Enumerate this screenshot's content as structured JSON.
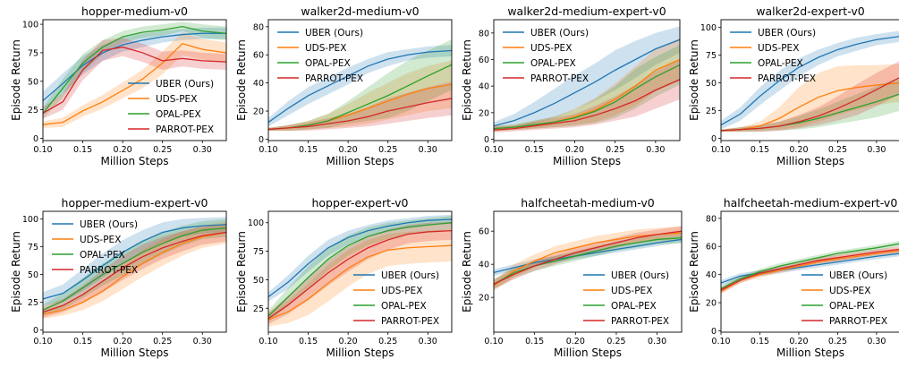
{
  "colors": {
    "UBER (Ours)": "#1f77b4",
    "UDS-PEX": "#ff7f0e",
    "OPAL-PEX": "#2ca02c",
    "PARROT-PEX": "#d62728"
  },
  "chart_data": [
    {
      "type": "line",
      "title": "hopper-medium-v0",
      "xlabel": "Million Steps",
      "ylabel": "Episode Return",
      "xlim": [
        0.1,
        0.33
      ],
      "ylim": [
        -2,
        104
      ],
      "xticks": [
        0.1,
        0.15,
        0.2,
        0.25,
        0.3
      ],
      "yticks": [
        0,
        25,
        50,
        75,
        100
      ],
      "legend": "bottom-right",
      "x": [
        0.1,
        0.125,
        0.15,
        0.175,
        0.2,
        0.225,
        0.25,
        0.275,
        0.3,
        0.33
      ],
      "series": [
        {
          "name": "UBER (Ours)",
          "values": [
            33,
            48,
            64,
            75,
            82,
            86,
            89,
            91,
            92,
            92
          ],
          "band": [
            8,
            9,
            8,
            7,
            6,
            6,
            5,
            5,
            5,
            5
          ]
        },
        {
          "name": "UDS-PEX",
          "values": [
            12,
            14,
            24,
            32,
            42,
            52,
            66,
            83,
            78,
            75
          ],
          "band": [
            3,
            4,
            5,
            6,
            7,
            8,
            10,
            10,
            9,
            9
          ]
        },
        {
          "name": "OPAL-PEX",
          "values": [
            22,
            44,
            66,
            80,
            89,
            93,
            95,
            98,
            94,
            92
          ],
          "band": [
            5,
            8,
            8,
            6,
            5,
            5,
            5,
            4,
            6,
            6
          ]
        },
        {
          "name": "PARROT-PEX",
          "values": [
            22,
            32,
            60,
            77,
            80,
            75,
            68,
            70,
            68,
            67
          ],
          "band": [
            5,
            7,
            9,
            9,
            8,
            8,
            8,
            7,
            7,
            7
          ]
        }
      ]
    },
    {
      "type": "line",
      "title": "walker2d-medium-v0",
      "xlabel": "Million Steps",
      "ylabel": "Episode Return",
      "xlim": [
        0.1,
        0.33
      ],
      "ylim": [
        -1,
        85
      ],
      "xticks": [
        0.1,
        0.15,
        0.2,
        0.25,
        0.3
      ],
      "yticks": [
        0,
        20,
        40,
        60,
        80
      ],
      "legend": "top-left",
      "x": [
        0.1,
        0.125,
        0.15,
        0.175,
        0.2,
        0.225,
        0.25,
        0.275,
        0.3,
        0.33
      ],
      "series": [
        {
          "name": "UBER (Ours)",
          "values": [
            12,
            22,
            31,
            38,
            45,
            52,
            57,
            60,
            62,
            63
          ],
          "band": [
            3,
            5,
            6,
            6,
            6,
            5,
            5,
            4,
            4,
            4
          ]
        },
        {
          "name": "UDS-PEX",
          "values": [
            7,
            8,
            10,
            13,
            17,
            22,
            27,
            32,
            36,
            39
          ],
          "band": [
            1,
            2,
            3,
            5,
            8,
            11,
            13,
            15,
            16,
            17
          ]
        },
        {
          "name": "OPAL-PEX",
          "values": [
            7,
            8,
            10,
            13,
            19,
            25,
            31,
            38,
            45,
            53
          ],
          "band": [
            1,
            2,
            3,
            5,
            8,
            12,
            16,
            18,
            18,
            18
          ]
        },
        {
          "name": "PARROT-PEX",
          "values": [
            7,
            8,
            9,
            11,
            13,
            16,
            20,
            23,
            26,
            29
          ],
          "band": [
            1,
            2,
            3,
            4,
            5,
            7,
            9,
            10,
            11,
            12
          ]
        }
      ]
    },
    {
      "type": "line",
      "title": "walker2d-medium-expert-v0",
      "xlabel": "Million Steps",
      "ylabel": "Episode Return",
      "xlim": [
        0.1,
        0.33
      ],
      "ylim": [
        -1,
        90
      ],
      "xticks": [
        0.1,
        0.15,
        0.2,
        0.25,
        0.3
      ],
      "yticks": [
        0,
        20,
        40,
        60,
        80
      ],
      "legend": "top-left",
      "x": [
        0.1,
        0.125,
        0.15,
        0.175,
        0.2,
        0.225,
        0.25,
        0.275,
        0.3,
        0.33
      ],
      "series": [
        {
          "name": "UBER (Ours)",
          "values": [
            10,
            14,
            20,
            27,
            35,
            43,
            52,
            60,
            68,
            75
          ],
          "band": [
            3,
            5,
            8,
            11,
            13,
            14,
            15,
            14,
            12,
            10
          ]
        },
        {
          "name": "UDS-PEX",
          "values": [
            8,
            9,
            11,
            13,
            17,
            22,
            30,
            40,
            52,
            60
          ],
          "band": [
            2,
            2,
            3,
            4,
            6,
            9,
            12,
            15,
            16,
            16
          ]
        },
        {
          "name": "OPAL-PEX",
          "values": [
            8,
            9,
            11,
            13,
            16,
            21,
            28,
            38,
            47,
            56
          ],
          "band": [
            2,
            2,
            3,
            4,
            6,
            9,
            12,
            15,
            15,
            15
          ]
        },
        {
          "name": "PARROT-PEX",
          "values": [
            7,
            8,
            10,
            12,
            14,
            18,
            23,
            29,
            37,
            45
          ],
          "band": [
            2,
            2,
            3,
            4,
            5,
            7,
            9,
            12,
            14,
            15
          ]
        }
      ]
    },
    {
      "type": "line",
      "title": "walker2d-expert-v0",
      "xlabel": "Million Steps",
      "ylabel": "Episode Return",
      "xlim": [
        0.1,
        0.33
      ],
      "ylim": [
        -2,
        107
      ],
      "xticks": [
        0.1,
        0.15,
        0.2,
        0.25,
        0.3
      ],
      "yticks": [
        0,
        25,
        50,
        75,
        100
      ],
      "legend": "top-left",
      "x": [
        0.1,
        0.125,
        0.15,
        0.175,
        0.2,
        0.225,
        0.25,
        0.275,
        0.3,
        0.33
      ],
      "series": [
        {
          "name": "UBER (Ours)",
          "values": [
            12,
            22,
            38,
            52,
            64,
            73,
            80,
            85,
            89,
            92
          ],
          "band": [
            4,
            6,
            8,
            9,
            8,
            7,
            6,
            6,
            5,
            5
          ]
        },
        {
          "name": "UDS-PEX",
          "values": [
            7,
            8,
            11,
            18,
            28,
            37,
            43,
            46,
            48,
            50
          ],
          "band": [
            1,
            2,
            4,
            10,
            18,
            22,
            22,
            20,
            18,
            17
          ]
        },
        {
          "name": "OPAL-PEX",
          "values": [
            7,
            8,
            9,
            11,
            14,
            18,
            23,
            28,
            33,
            40
          ],
          "band": [
            1,
            2,
            3,
            4,
            6,
            8,
            10,
            12,
            14,
            15
          ]
        },
        {
          "name": "PARROT-PEX",
          "values": [
            7,
            8,
            9,
            11,
            15,
            20,
            27,
            35,
            44,
            55
          ],
          "band": [
            1,
            2,
            3,
            4,
            6,
            8,
            11,
            14,
            15,
            15
          ]
        }
      ]
    },
    {
      "type": "line",
      "title": "hopper-medium-expert-v0",
      "xlabel": "Million Steps",
      "ylabel": "Episode Return",
      "xlim": [
        0.1,
        0.33
      ],
      "ylim": [
        -2,
        107
      ],
      "xticks": [
        0.1,
        0.15,
        0.2,
        0.25,
        0.3
      ],
      "yticks": [
        0,
        25,
        50,
        75,
        100
      ],
      "legend": "top-left",
      "x": [
        0.1,
        0.125,
        0.15,
        0.175,
        0.2,
        0.225,
        0.25,
        0.275,
        0.3,
        0.33
      ],
      "series": [
        {
          "name": "UBER (Ours)",
          "values": [
            28,
            33,
            45,
            58,
            70,
            80,
            88,
            92,
            94,
            95
          ],
          "band": [
            6,
            8,
            10,
            11,
            11,
            10,
            9,
            8,
            7,
            7
          ]
        },
        {
          "name": "UDS-PEX",
          "values": [
            14,
            18,
            25,
            35,
            48,
            60,
            70,
            78,
            84,
            88
          ],
          "band": [
            4,
            5,
            7,
            9,
            11,
            12,
            12,
            11,
            10,
            10
          ]
        },
        {
          "name": "OPAL-PEX",
          "values": [
            18,
            26,
            38,
            50,
            60,
            70,
            78,
            85,
            90,
            92
          ],
          "band": [
            5,
            7,
            9,
            10,
            11,
            11,
            10,
            9,
            8,
            8
          ]
        },
        {
          "name": "PARROT-PEX",
          "values": [
            16,
            22,
            32,
            44,
            56,
            66,
            74,
            80,
            85,
            88
          ],
          "band": [
            5,
            6,
            8,
            10,
            11,
            11,
            10,
            9,
            8,
            8
          ]
        }
      ]
    },
    {
      "type": "line",
      "title": "hopper-expert-v0",
      "xlabel": "Million Steps",
      "ylabel": "Episode Return",
      "xlim": [
        0.1,
        0.33
      ],
      "ylim": [
        4,
        110
      ],
      "xticks": [
        0.1,
        0.15,
        0.2,
        0.25,
        0.3
      ],
      "yticks": [
        25,
        50,
        75,
        100
      ],
      "legend": "bottom-right",
      "x": [
        0.1,
        0.125,
        0.15,
        0.175,
        0.2,
        0.225,
        0.25,
        0.275,
        0.3,
        0.33
      ],
      "series": [
        {
          "name": "UBER (Ours)",
          "values": [
            35,
            48,
            64,
            78,
            87,
            93,
            97,
            100,
            102,
            103
          ],
          "band": [
            4,
            6,
            7,
            7,
            6,
            5,
            5,
            4,
            4,
            4
          ]
        },
        {
          "name": "UDS-PEX",
          "values": [
            15,
            22,
            33,
            47,
            60,
            70,
            76,
            78,
            79,
            80
          ],
          "band": [
            6,
            10,
            14,
            16,
            16,
            15,
            14,
            14,
            14,
            14
          ]
        },
        {
          "name": "OPAL-PEX",
          "values": [
            18,
            35,
            52,
            68,
            80,
            88,
            93,
            96,
            98,
            100
          ],
          "band": [
            5,
            8,
            10,
            10,
            9,
            8,
            7,
            6,
            6,
            6
          ]
        },
        {
          "name": "PARROT-PEX",
          "values": [
            16,
            28,
            42,
            56,
            68,
            78,
            85,
            90,
            92,
            93
          ],
          "band": [
            5,
            8,
            10,
            11,
            11,
            10,
            9,
            8,
            8,
            8
          ]
        }
      ]
    },
    {
      "type": "line",
      "title": "halfcheetah-medium-v0",
      "xlabel": "Million Steps",
      "ylabel": "Episode Return",
      "xlim": [
        0.1,
        0.33
      ],
      "ylim": [
        -1,
        72
      ],
      "xticks": [
        0.1,
        0.15,
        0.2,
        0.25,
        0.3
      ],
      "yticks": [
        20,
        40,
        60
      ],
      "legend": "bottom-right",
      "x": [
        0.1,
        0.125,
        0.15,
        0.175,
        0.2,
        0.225,
        0.25,
        0.275,
        0.3,
        0.33
      ],
      "series": [
        {
          "name": "UBER (Ours)",
          "values": [
            35,
            38,
            41,
            43,
            45,
            47,
            49,
            51,
            53,
            55
          ],
          "band": [
            2,
            2,
            2,
            2,
            2,
            2,
            2,
            2,
            2,
            2
          ]
        },
        {
          "name": "UDS-PEX",
          "values": [
            27,
            36,
            42,
            47,
            50,
            53,
            55,
            57,
            58,
            59
          ],
          "band": [
            3,
            4,
            4,
            4,
            4,
            4,
            4,
            4,
            4,
            4
          ]
        },
        {
          "name": "OPAL-PEX",
          "values": [
            28,
            35,
            39,
            42,
            45,
            48,
            51,
            53,
            55,
            56
          ],
          "band": [
            3,
            3,
            3,
            3,
            3,
            3,
            3,
            3,
            3,
            3
          ]
        },
        {
          "name": "PARROT-PEX",
          "values": [
            28,
            34,
            39,
            43,
            47,
            50,
            53,
            56,
            58,
            60
          ],
          "band": [
            3,
            3,
            3,
            3,
            3,
            3,
            3,
            3,
            3,
            3
          ]
        }
      ]
    },
    {
      "type": "line",
      "title": "halfcheetah-medium-expert-v0",
      "xlabel": "Million Steps",
      "ylabel": "Episode Return",
      "xlim": [
        0.1,
        0.33
      ],
      "ylim": [
        -1,
        85
      ],
      "xticks": [
        0.1,
        0.15,
        0.2,
        0.25,
        0.3
      ],
      "yticks": [
        0,
        20,
        40,
        60,
        80
      ],
      "legend": "bottom-right",
      "x": [
        0.1,
        0.125,
        0.15,
        0.175,
        0.2,
        0.225,
        0.25,
        0.275,
        0.3,
        0.33
      ],
      "series": [
        {
          "name": "UBER (Ours)",
          "values": [
            34,
            39,
            41,
            43,
            45,
            47,
            49,
            51,
            53,
            55
          ],
          "band": [
            2,
            2,
            2,
            2,
            2,
            2,
            2,
            2,
            2,
            2
          ]
        },
        {
          "name": "UDS-PEX",
          "values": [
            28,
            36,
            40,
            43,
            46,
            49,
            51,
            53,
            55,
            57
          ],
          "band": [
            2,
            2,
            2,
            2,
            2,
            2,
            2,
            2,
            2,
            2
          ]
        },
        {
          "name": "OPAL-PEX",
          "values": [
            30,
            37,
            42,
            46,
            49,
            52,
            55,
            57,
            59,
            62
          ],
          "band": [
            2,
            2,
            2,
            2,
            2,
            2,
            2,
            2,
            2,
            2
          ]
        },
        {
          "name": "PARROT-PEX",
          "values": [
            29,
            36,
            41,
            44,
            47,
            50,
            52,
            54,
            56,
            58
          ],
          "band": [
            2,
            2,
            2,
            2,
            2,
            2,
            2,
            2,
            2,
            2
          ]
        }
      ]
    }
  ]
}
